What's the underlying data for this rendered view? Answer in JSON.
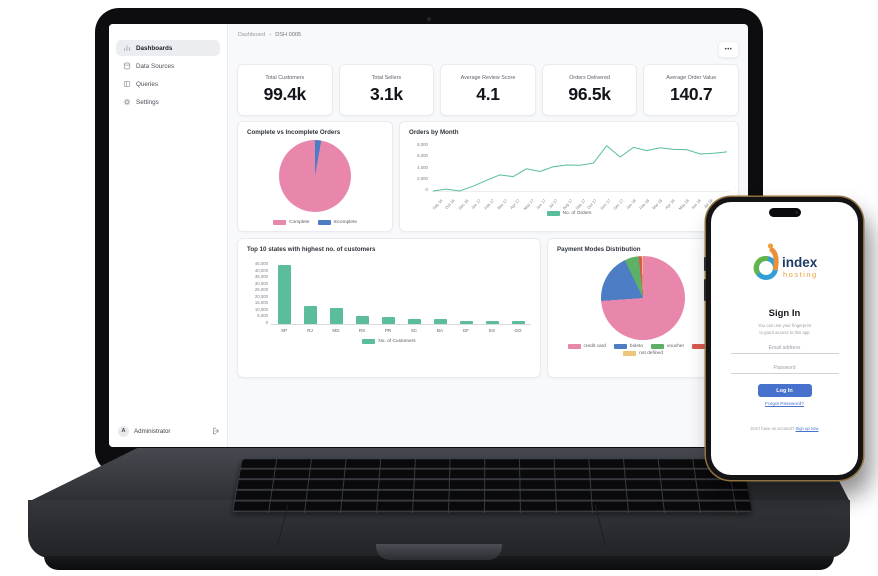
{
  "screen": {
    "breadcrumb": {
      "root": "Dashboard",
      "separator": "›",
      "current": "DSH 0005"
    },
    "menu_dots": "•••",
    "sidebar": {
      "items": [
        {
          "label": "Dashboards",
          "icon": "bar-chart-icon",
          "active": true
        },
        {
          "label": "Data Sources",
          "icon": "database-icon",
          "active": false
        },
        {
          "label": "Queries",
          "icon": "columns-icon",
          "active": false
        },
        {
          "label": "Settings",
          "icon": "gear-icon",
          "active": false
        }
      ],
      "footer": {
        "avatar_initial": "A",
        "username": "Administrator"
      }
    },
    "kpis": [
      {
        "label": "Total Customers",
        "value": "99.4k"
      },
      {
        "label": "Total Sellers",
        "value": "3.1k"
      },
      {
        "label": "Average Review Score",
        "value": "4.1"
      },
      {
        "label": "Orders Delivered",
        "value": "96.5k"
      },
      {
        "label": "Average Order Value",
        "value": "140.7"
      }
    ]
  },
  "chart_data": [
    {
      "type": "pie",
      "title": "Complete vs Incomplete Orders",
      "labels": [
        "Complete",
        "Incomplete"
      ],
      "values": [
        97.1,
        2.9
      ],
      "colors": [
        "#e886ac",
        "#4d7dc5"
      ],
      "rotate": 10,
      "legend_position": "bottom"
    },
    {
      "type": "line",
      "title": "Orders by Month",
      "x": [
        "Sep 16",
        "Oct 16",
        "Dec 16",
        "Jan 17",
        "Feb 17",
        "Mar 17",
        "Apr 17",
        "May 17",
        "Jun 17",
        "Jul 17",
        "Aug 17",
        "Sep 17",
        "Oct 17",
        "Nov 17",
        "Dec 17",
        "Jan 18",
        "Feb 18",
        "Mar 18",
        "Apr 18",
        "May 18",
        "Jun 18",
        "Jul 18",
        "Aug 18"
      ],
      "series": [
        {
          "name": "No. of Orders",
          "color": "#57bd9c",
          "values": [
            4,
            324,
            1,
            800,
            1780,
            2682,
            2404,
            3700,
            3245,
            4026,
            4331,
            4285,
            4631,
            7544,
            5673,
            7269,
            6728,
            7211,
            6939,
            6873,
            6167,
            6292,
            6512
          ]
        }
      ],
      "ylim": [
        0,
        8000
      ],
      "yticks": [
        "8,000",
        "6,000",
        "4,000",
        "2,000",
        "0"
      ],
      "grid": false,
      "legend_position": "bottom"
    },
    {
      "type": "bar",
      "title": "Top 10 states with highest no. of customers",
      "categories": [
        "SP",
        "RJ",
        "MG",
        "RS",
        "PR",
        "SC",
        "BA",
        "DF",
        "ES",
        "GO"
      ],
      "values": [
        41746,
        12852,
        11635,
        5466,
        5045,
        3637,
        3380,
        2140,
        2033,
        2020
      ],
      "series_name": "No. of Customers",
      "color": "#5bbd9b",
      "ylim": [
        0,
        45000
      ],
      "yticks": [
        "45,000",
        "40,000",
        "35,000",
        "30,000",
        "25,000",
        "20,000",
        "15,000",
        "10,000",
        "5,000",
        "0"
      ],
      "legend_position": "bottom"
    },
    {
      "type": "pie",
      "title": "Payment Modes Distribution",
      "labels": [
        "credit card",
        "boleto",
        "voucher",
        "debit",
        "not defined"
      ],
      "values": [
        73.9,
        19.0,
        5.4,
        1.2,
        0.5
      ],
      "colors": [
        "#e886ac",
        "#4d7dc5",
        "#5cb167",
        "#d9594f",
        "#eec678"
      ],
      "rotate": 0,
      "legend_position": "bottom"
    }
  ],
  "phone": {
    "brand": {
      "name": "index",
      "sub": "hosting"
    },
    "heading": "Sign In",
    "subtitle_line1": "You can use your fingerprint",
    "subtitle_line2": "to grant access to this app",
    "email_placeholder": "Email address",
    "password_placeholder": "Password",
    "login_label": "Log In",
    "forgot_label": "Forgot Password?",
    "footer_text": "Don't have an account?",
    "footer_link": "Sign up now",
    "accent": "#4671cd"
  }
}
